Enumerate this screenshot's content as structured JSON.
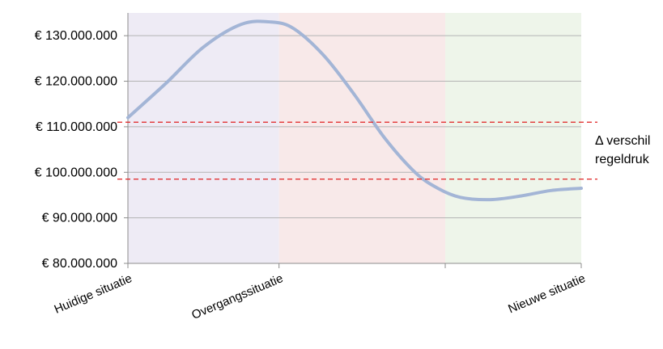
{
  "chart_data": {
    "type": "line",
    "xlabel": "",
    "ylabel": "",
    "ylim": [
      80000000,
      135000000
    ],
    "y_ticks": [
      80000000,
      90000000,
      100000000,
      110000000,
      120000000,
      130000000
    ],
    "y_tick_labels": [
      "€ 80.000.000",
      "€ 90.000.000",
      "€ 100.000.000",
      "€ 110.000.000",
      "€ 120.000.000",
      "€ 130.000.000"
    ],
    "x_tick_labels": [
      "Huidige situatie",
      "Overgangssituatie",
      "",
      "Nieuwe situatie"
    ],
    "grid": true,
    "phases": [
      {
        "x_start": 0,
        "x_end": 1,
        "color": "#eeebf5"
      },
      {
        "x_start": 1,
        "x_end": 2.1,
        "color": "#f8e9e9"
      },
      {
        "x_start": 2.1,
        "x_end": 3,
        "color": "#eef5ea"
      }
    ],
    "series": [
      {
        "color": "#a3b5d6",
        "x": [
          0,
          0.25,
          0.5,
          0.75,
          0.95,
          1.1,
          1.3,
          1.5,
          1.7,
          1.9,
          2.05,
          2.2,
          2.4,
          2.6,
          2.8,
          3.0
        ],
        "y": [
          112000000,
          119500000,
          127500000,
          132500000,
          133000000,
          131500000,
          125500000,
          117000000,
          107500000,
          100000000,
          96500000,
          94500000,
          94000000,
          94800000,
          96000000,
          96500000
        ]
      }
    ],
    "reference_lines": [
      {
        "y": 111000000,
        "color": "#e02020",
        "style": "dashed"
      },
      {
        "y": 98500000,
        "color": "#e02020",
        "style": "dashed"
      }
    ],
    "annotation": [
      "Δ verschil",
      "regeldruk"
    ]
  }
}
